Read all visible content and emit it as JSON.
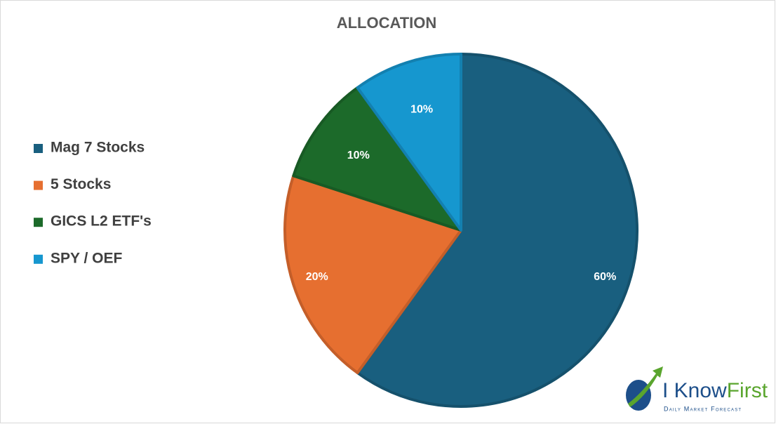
{
  "chart_data": {
    "type": "pie",
    "title": "ALLOCATION",
    "categories": [
      "Mag 7 Stocks",
      "5 Stocks",
      "GICS L2 ETF's",
      "SPY / OEF"
    ],
    "values": [
      60,
      20,
      10,
      10
    ],
    "value_labels": [
      "60%",
      "20%",
      "10%",
      "10%"
    ],
    "colors": [
      "#195f7f",
      "#e66f30",
      "#1c6a2a",
      "#1697cf"
    ],
    "legend": "left"
  },
  "logo": {
    "brand": [
      "I Know",
      "First"
    ],
    "tagline": "Daily Market Forecast"
  }
}
